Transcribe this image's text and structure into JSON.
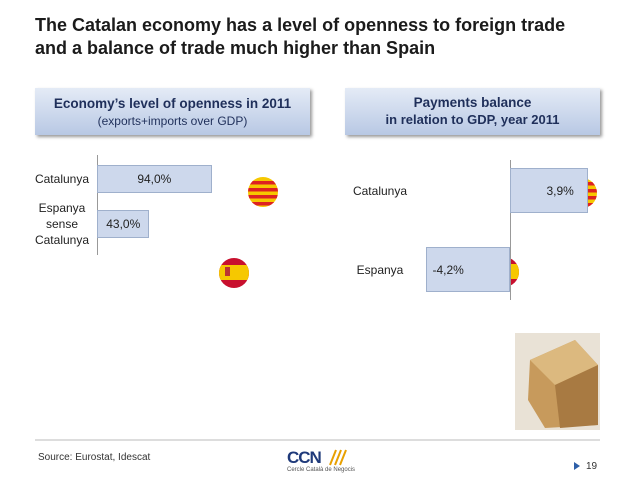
{
  "title": "The Catalan economy has a level of openness to foreign trade and a balance of trade much higher than Spain",
  "chart_data": [
    {
      "type": "bar",
      "orientation": "horizontal",
      "title": "Economy’s level of openness in 2011",
      "subtitle": "(exports+imports over GDP)",
      "categories": [
        "Catalunya",
        "Espanya sense Catalunya"
      ],
      "values": [
        94.0,
        43.0
      ],
      "value_labels": [
        "94,0%",
        "43,0%"
      ],
      "color": "#cdd8ec"
    },
    {
      "type": "bar",
      "orientation": "horizontal",
      "title": "Payments balance",
      "subtitle": "in relation to GDP, year 2011",
      "categories": [
        "Catalunya",
        "Espanya"
      ],
      "values": [
        3.9,
        -4.2
      ],
      "value_labels": [
        "3,9%",
        "-4,2%"
      ],
      "color": "#cdd8ec"
    }
  ],
  "source": "Source: Eurostat, Idescat",
  "page_number": "19",
  "logo": {
    "name": "CCN",
    "caption": "Cercle Català de Negocis"
  }
}
